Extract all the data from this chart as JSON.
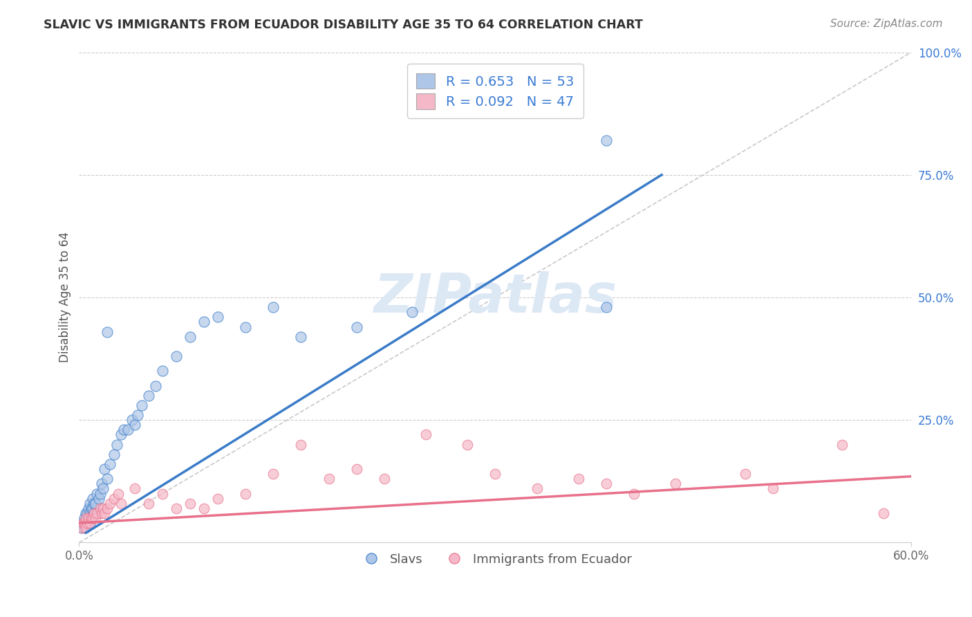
{
  "title": "SLAVIC VS IMMIGRANTS FROM ECUADOR DISABILITY AGE 35 TO 64 CORRELATION CHART",
  "source": "Source: ZipAtlas.com",
  "ylabel": "Disability Age 35 to 64",
  "xlim": [
    0.0,
    0.6
  ],
  "ylim": [
    0.0,
    1.0
  ],
  "slavs_R": 0.653,
  "slavs_N": 53,
  "ecuador_R": 0.092,
  "ecuador_N": 47,
  "slavs_color": "#aec6e8",
  "ecuador_color": "#f5b8c8",
  "slavs_line_color": "#3a7bc8",
  "ecuador_line_color": "#e8708a",
  "ref_line_color": "#bbbbbb",
  "legend_text_color": "#3a7bd5",
  "watermark_color": "#dde8f5",
  "background_color": "#ffffff",
  "slavs_x": [
    0.002,
    0.003,
    0.004,
    0.004,
    0.005,
    0.005,
    0.006,
    0.006,
    0.007,
    0.007,
    0.008,
    0.008,
    0.008,
    0.009,
    0.009,
    0.01,
    0.01,
    0.01,
    0.011,
    0.011,
    0.012,
    0.013,
    0.014,
    0.015,
    0.016,
    0.017,
    0.018,
    0.02,
    0.02,
    0.022,
    0.025,
    0.027,
    0.03,
    0.032,
    0.035,
    0.038,
    0.04,
    0.042,
    0.045,
    0.05,
    0.055,
    0.06,
    0.07,
    0.08,
    0.09,
    0.1,
    0.12,
    0.14,
    0.16,
    0.2,
    0.24,
    0.38,
    0.38
  ],
  "slavs_y": [
    0.03,
    0.04,
    0.03,
    0.05,
    0.04,
    0.06,
    0.04,
    0.06,
    0.05,
    0.07,
    0.04,
    0.06,
    0.08,
    0.05,
    0.07,
    0.05,
    0.07,
    0.09,
    0.06,
    0.08,
    0.08,
    0.1,
    0.09,
    0.1,
    0.12,
    0.11,
    0.15,
    0.13,
    0.43,
    0.16,
    0.18,
    0.2,
    0.22,
    0.23,
    0.23,
    0.25,
    0.24,
    0.26,
    0.28,
    0.3,
    0.32,
    0.35,
    0.38,
    0.42,
    0.45,
    0.46,
    0.44,
    0.48,
    0.42,
    0.44,
    0.47,
    0.82,
    0.48
  ],
  "ecuador_x": [
    0.002,
    0.003,
    0.004,
    0.005,
    0.005,
    0.006,
    0.007,
    0.008,
    0.009,
    0.01,
    0.011,
    0.012,
    0.013,
    0.015,
    0.016,
    0.017,
    0.018,
    0.02,
    0.022,
    0.025,
    0.028,
    0.03,
    0.04,
    0.05,
    0.06,
    0.07,
    0.08,
    0.09,
    0.1,
    0.12,
    0.14,
    0.16,
    0.18,
    0.2,
    0.22,
    0.25,
    0.28,
    0.3,
    0.33,
    0.36,
    0.38,
    0.4,
    0.43,
    0.48,
    0.5,
    0.55,
    0.58
  ],
  "ecuador_y": [
    0.03,
    0.04,
    0.04,
    0.03,
    0.05,
    0.04,
    0.05,
    0.04,
    0.05,
    0.05,
    0.06,
    0.05,
    0.06,
    0.07,
    0.06,
    0.07,
    0.06,
    0.07,
    0.08,
    0.09,
    0.1,
    0.08,
    0.11,
    0.08,
    0.1,
    0.07,
    0.08,
    0.07,
    0.09,
    0.1,
    0.14,
    0.2,
    0.13,
    0.15,
    0.13,
    0.22,
    0.2,
    0.14,
    0.11,
    0.13,
    0.12,
    0.1,
    0.12,
    0.14,
    0.11,
    0.2,
    0.06
  ],
  "slavs_trend": [
    0.005,
    0.42
  ],
  "slavs_trend_y": [
    0.02,
    0.75
  ],
  "ecuador_trend": [
    0.0,
    0.6
  ],
  "ecuador_trend_y": [
    0.04,
    0.135
  ]
}
